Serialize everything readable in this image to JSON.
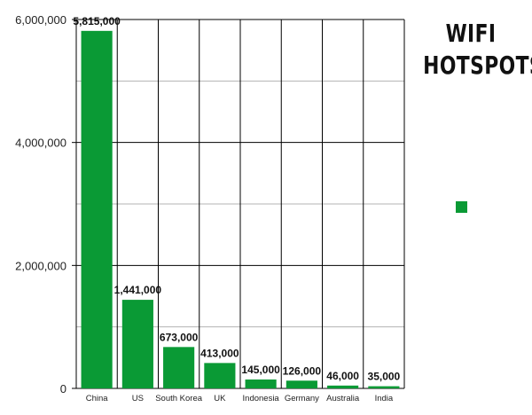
{
  "chart_data": {
    "type": "bar",
    "title": "WIFI HOTSPOTS",
    "categories": [
      "China",
      "US",
      "South Korea",
      "UK",
      "Indonesia",
      "Germany",
      "Australia",
      "India"
    ],
    "values": [
      5815000,
      1441000,
      673000,
      413000,
      145000,
      126000,
      46000,
      35000
    ],
    "data_labels": [
      "5,815,000",
      "1,441,000",
      "673,000",
      "413,000",
      "145,000",
      "126,000",
      "46,000",
      "35,000"
    ],
    "y_ticks": [
      0,
      2000000,
      4000000,
      6000000
    ],
    "y_tick_labels": [
      "0",
      "2,000,000",
      "4,000,000",
      "6,000,000"
    ],
    "minor_grid_step": 1000000,
    "ylim": [
      0,
      6000000
    ],
    "xlabel": "",
    "ylabel": "",
    "grid": true,
    "legend_position": "right",
    "bar_color": "#0a9a35",
    "major_grid_color": "#000000",
    "minor_grid_color": "#b3b3b3"
  }
}
